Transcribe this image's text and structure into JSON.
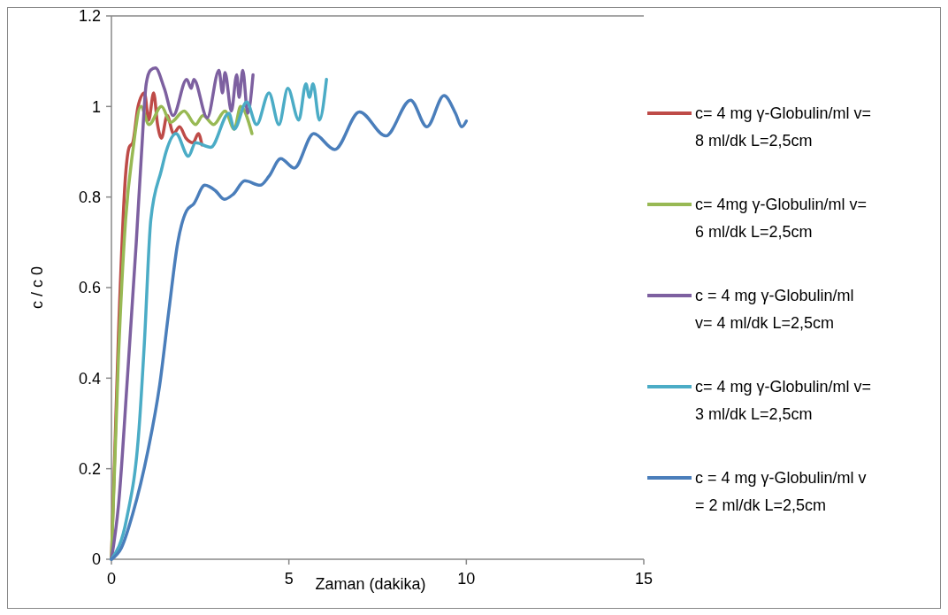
{
  "chart_data": {
    "type": "line",
    "xlabel": "Zaman (dakika)",
    "ylabel": "c / c 0",
    "xlim": [
      0,
      15
    ],
    "ylim": [
      0,
      1.2
    ],
    "xticks": [
      0,
      5,
      10,
      15
    ],
    "yticks": [
      0,
      0.2,
      0.4,
      0.6,
      0.8,
      1,
      1.2
    ],
    "grid": false,
    "legend": "right",
    "marker": "none",
    "line_style": "solid",
    "series": [
      {
        "name": "c= 4 mg γ-Globulin/ml v= 8 ml/dk L=2,5cm",
        "color": "#be4b48",
        "x": [
          0,
          0.2,
          0.4,
          0.5,
          0.6,
          0.75,
          0.93,
          1.05,
          1.19,
          1.3,
          1.41,
          1.57,
          1.75,
          1.92,
          2.1,
          2.3,
          2.45,
          2.55
        ],
        "values": [
          0,
          0.5,
          0.85,
          0.91,
          0.92,
          1.0,
          1.03,
          0.97,
          1.03,
          0.96,
          0.93,
          0.98,
          0.94,
          0.955,
          0.93,
          0.92,
          0.94,
          0.915
        ]
      },
      {
        "name": "c= 4mg γ-Globulin/ml v= 6 ml/dk L=2,5cm",
        "color": "#98b954",
        "x": [
          0,
          0.2,
          0.4,
          0.6,
          0.83,
          1.06,
          1.41,
          1.67,
          2.05,
          2.37,
          2.58,
          2.88,
          3.2,
          3.46,
          3.64,
          3.96
        ],
        "values": [
          0,
          0.45,
          0.75,
          0.9,
          1.0,
          0.96,
          1.0,
          0.965,
          0.99,
          0.96,
          0.98,
          0.96,
          0.99,
          0.95,
          1.0,
          0.94
        ]
      },
      {
        "name": "c = 4 mg γ-Globulin/ml v= 4 ml/dk L=2,5cm",
        "color": "#7d60a0",
        "x": [
          0,
          0.2,
          0.45,
          0.7,
          0.85,
          0.98,
          1.1,
          1.24,
          1.49,
          1.74,
          2.12,
          2.25,
          2.32,
          2.7,
          3.03,
          3.13,
          3.2,
          3.38,
          3.53,
          3.6,
          3.7,
          3.84,
          3.99
        ],
        "values": [
          0,
          0.12,
          0.4,
          0.7,
          0.9,
          1.05,
          1.08,
          1.085,
          1.04,
          0.98,
          1.06,
          1.04,
          1.06,
          0.975,
          1.08,
          1.03,
          1.075,
          0.99,
          1.07,
          1.02,
          1.08,
          0.985,
          1.07
        ]
      },
      {
        "name": "c= 4 mg γ-Globulin/ml v= 3 ml/dk L=2,5cm",
        "color": "#4bacc6",
        "x": [
          0,
          0.43,
          0.78,
          0.93,
          1.11,
          1.41,
          1.54,
          1.82,
          2.17,
          2.37,
          2.8,
          3.31,
          3.46,
          3.81,
          4.09,
          4.44,
          4.72,
          4.97,
          5.28,
          5.48,
          5.58,
          5.68,
          5.86,
          6.06
        ],
        "values": [
          0,
          0.09,
          0.29,
          0.48,
          0.75,
          0.86,
          0.9,
          0.94,
          0.89,
          0.92,
          0.91,
          0.985,
          0.95,
          1.01,
          0.96,
          1.03,
          0.96,
          1.04,
          0.97,
          1.05,
          1.02,
          1.05,
          0.97,
          1.06
        ]
      },
      {
        "name": "c = 4 mg γ-Globulin/ml v = 2 ml/dk L=2,5cm",
        "color": "#4a7ebb",
        "x": [
          0,
          0.28,
          0.6,
          1.03,
          1.36,
          1.62,
          1.87,
          2.12,
          2.32,
          2.63,
          2.93,
          3.18,
          3.43,
          3.76,
          4.19,
          4.44,
          4.77,
          5.15,
          5.7,
          6.29,
          6.99,
          7.73,
          8.43,
          8.89,
          9.37,
          9.7,
          9.87,
          10.0
        ],
        "values": [
          0,
          0.025,
          0.1,
          0.24,
          0.385,
          0.55,
          0.7,
          0.77,
          0.785,
          0.826,
          0.814,
          0.795,
          0.806,
          0.836,
          0.826,
          0.846,
          0.885,
          0.864,
          0.94,
          0.905,
          0.988,
          0.935,
          1.014,
          0.955,
          1.024,
          0.984,
          0.955,
          0.968
        ]
      }
    ]
  }
}
